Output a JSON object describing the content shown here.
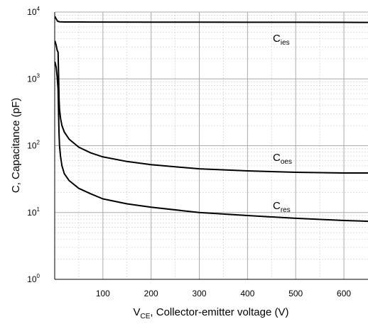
{
  "chart_data": {
    "type": "line",
    "title": "",
    "xlabel": {
      "prefix": "V",
      "sub": "CE",
      "suffix": ", Collector-emitter voltage (V)"
    },
    "ylabel": "C, Capacitance (pF)",
    "xlim": [
      0,
      650
    ],
    "ylim": [
      1,
      10000
    ],
    "yscale": "log",
    "grid": true,
    "x_ticks": [
      100,
      200,
      300,
      400,
      500,
      600
    ],
    "y_ticks": [
      {
        "value": 1,
        "base": "10",
        "exp": "0"
      },
      {
        "value": 10,
        "base": "10",
        "exp": "1"
      },
      {
        "value": 100,
        "base": "10",
        "exp": "2"
      },
      {
        "value": 1000,
        "base": "10",
        "exp": "3"
      },
      {
        "value": 10000,
        "base": "10",
        "exp": "4"
      }
    ],
    "series": [
      {
        "name": "Cies",
        "label_main": "C",
        "label_sub": "ies",
        "x": [
          0.5,
          3,
          6,
          10,
          20,
          50,
          100,
          200,
          300,
          400,
          500,
          600,
          650
        ],
        "y": [
          8600,
          7900,
          7300,
          7150,
          7100,
          7100,
          7080,
          7060,
          7050,
          7040,
          7030,
          7020,
          7000
        ]
      },
      {
        "name": "Coes",
        "label_main": "C",
        "label_sub": "oes",
        "x": [
          0.5,
          3,
          5,
          7,
          8,
          9,
          10,
          12,
          15,
          20,
          30,
          50,
          75,
          100,
          150,
          200,
          300,
          400,
          500,
          600,
          650
        ],
        "y": [
          3700,
          3200,
          2700,
          2500,
          1200,
          500,
          350,
          260,
          200,
          160,
          125,
          95,
          78,
          68,
          58,
          52,
          45,
          42,
          40,
          39,
          39
        ]
      },
      {
        "name": "Cres",
        "label_main": "C",
        "label_sub": "res",
        "x": [
          0.5,
          3,
          5,
          7,
          8,
          9,
          10,
          12,
          15,
          20,
          30,
          50,
          75,
          100,
          150,
          200,
          300,
          400,
          500,
          600,
          650
        ],
        "y": [
          1800,
          1500,
          1100,
          700,
          300,
          150,
          100,
          70,
          50,
          38,
          30,
          23,
          19,
          16,
          13.5,
          12,
          10,
          9,
          8.2,
          7.6,
          7.4
        ]
      }
    ]
  }
}
